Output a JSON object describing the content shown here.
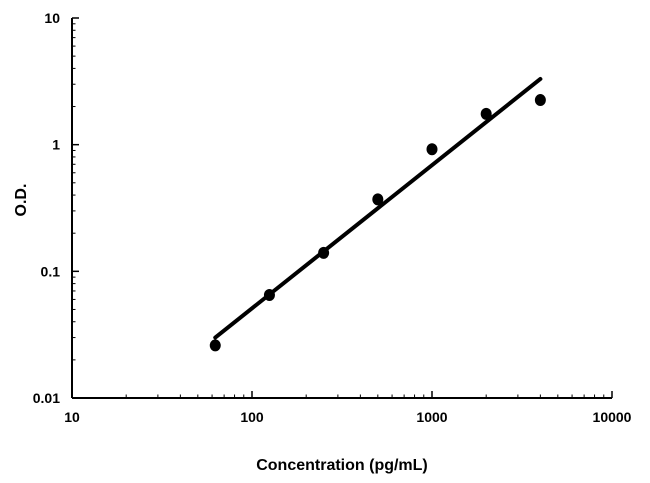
{
  "chart_data": {
    "type": "scatter",
    "title": "",
    "xlabel": "Concentration (pg/mL)",
    "ylabel": "O.D.",
    "x_scale": "log",
    "y_scale": "log",
    "xlim": [
      10,
      10000
    ],
    "ylim": [
      0.01,
      10
    ],
    "x_ticks": [
      "10",
      "100",
      "1000",
      "10000"
    ],
    "y_ticks": [
      "0.01",
      "0.1",
      "1",
      "10"
    ],
    "grid": false,
    "legend": "none",
    "series": [
      {
        "x": [
          62.5,
          125,
          250,
          500,
          1000,
          2000,
          4000
        ],
        "y": [
          0.026,
          0.065,
          0.14,
          0.37,
          0.92,
          1.75,
          2.25
        ]
      }
    ],
    "fit_line": {
      "x": [
        62.5,
        4000
      ],
      "y": [
        0.03,
        3.3
      ]
    },
    "colors": {
      "marks": "#000000",
      "axes": "#000000"
    }
  }
}
